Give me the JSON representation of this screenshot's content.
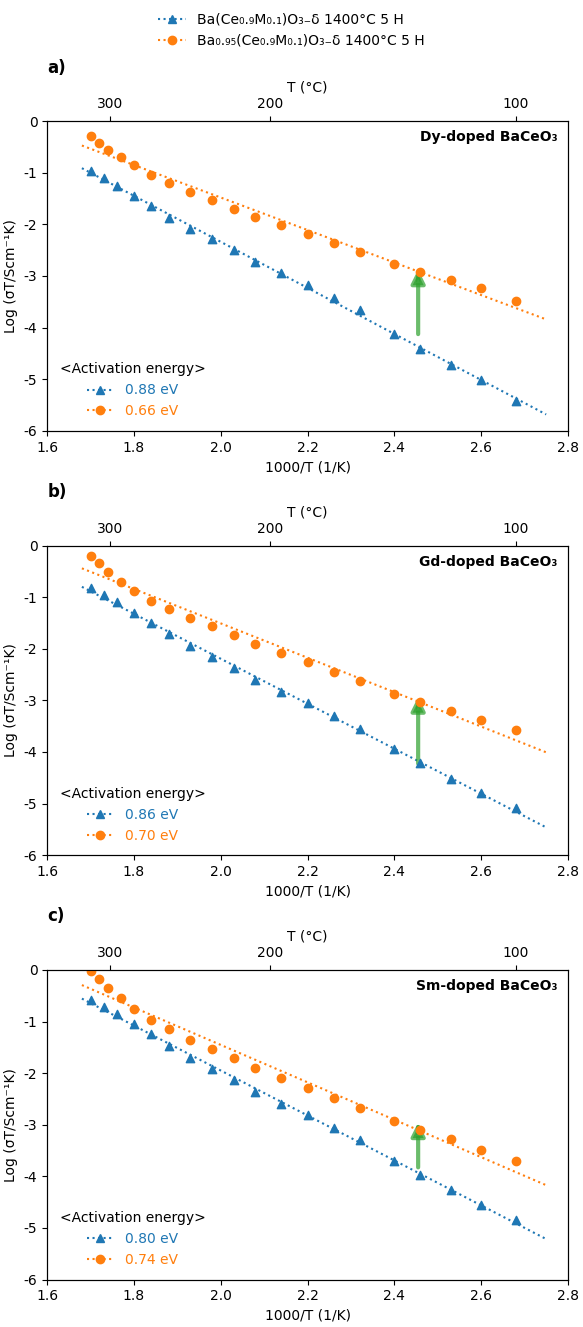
{
  "chart_data": [
    {
      "type": "scatter",
      "panel_label": "a)",
      "title": "Dy-doped BaCeO₃",
      "xlabel": "1000/T (1/K)",
      "ylabel": "Log (σT/Scm⁻¹K)",
      "x2label": "T (°C)",
      "xlim": [
        1.6,
        2.8
      ],
      "xticks": [
        1.6,
        1.8,
        2.0,
        2.2,
        2.4,
        2.6,
        2.8
      ],
      "x2lim": [
        1.6,
        2.8
      ],
      "x2ticks": [
        {
          "value": 1.744744,
          "label": "300"
        },
        {
          "value": 2.113495,
          "label": "200"
        },
        {
          "value": 2.679887,
          "label": "100"
        }
      ],
      "ylim": [
        -6,
        0
      ],
      "yticks": [
        0,
        -1,
        -2,
        -3,
        -4,
        -5,
        -6
      ],
      "annotation_title": "<Activation energy>",
      "series": [
        {
          "name": "Ba(Ce₀.₉M₀.₁)O₃₋δ 1400°C 5 H",
          "marker": "triangle",
          "line_style": "dotted",
          "annotation": "0.88 eV",
          "x": [
            1.7,
            1.731,
            1.761,
            1.8,
            1.84,
            1.88,
            1.93,
            1.98,
            2.03,
            2.08,
            2.14,
            2.2,
            2.26,
            2.32,
            2.4,
            2.46,
            2.53,
            2.6,
            2.68
          ],
          "values": [
            -0.97,
            -1.1,
            -1.25,
            -1.45,
            -1.65,
            -1.88,
            -2.08,
            -2.28,
            -2.5,
            -2.72,
            -2.95,
            -3.18,
            -3.42,
            -3.65,
            -4.12,
            -4.42,
            -4.72,
            -5.02,
            -5.42
          ],
          "trend_x": [
            1.68,
            2.75
          ],
          "trend_values": [
            -0.910968,
            -5.683002
          ]
        },
        {
          "name": "Ba₀.₉₅(Ce₀.₉M₀.₁)O₃₋δ 1400°C 5 H",
          "marker": "circle",
          "line_style": "dotted",
          "annotation": "0.66 eV",
          "x": [
            1.7,
            1.72,
            1.74,
            1.77,
            1.8,
            1.84,
            1.88,
            1.93,
            1.98,
            2.03,
            2.08,
            2.14,
            2.2,
            2.26,
            2.32,
            2.4,
            2.46,
            2.53,
            2.6,
            2.68
          ],
          "values": [
            -0.28,
            -0.42,
            -0.55,
            -0.7,
            -0.85,
            -1.05,
            -1.2,
            -1.38,
            -1.53,
            -1.7,
            -1.85,
            -2.02,
            -2.18,
            -2.36,
            -2.53,
            -2.76,
            -2.92,
            -3.08,
            -3.24,
            -3.48
          ],
          "trend_x": [
            1.68,
            2.75
          ],
          "trend_values": [
            -0.472131,
            -3.841162
          ]
        }
      ],
      "arrows": [
        {
          "x": 2.455,
          "y_tail": -4.18,
          "y_head": -2.82
        }
      ]
    },
    {
      "type": "scatter",
      "panel_label": "b)",
      "title": "Gd-doped BaCeO₃",
      "xlabel": "1000/T (1/K)",
      "ylabel": "Log (σT/Scm⁻¹K)",
      "x2label": "T (°C)",
      "xlim": [
        1.6,
        2.8
      ],
      "xticks": [
        1.6,
        1.8,
        2.0,
        2.2,
        2.4,
        2.6,
        2.8
      ],
      "x2lim": [
        1.6,
        2.8
      ],
      "x2ticks": [
        {
          "value": 1.744744,
          "label": "300"
        },
        {
          "value": 2.113495,
          "label": "200"
        },
        {
          "value": 2.679887,
          "label": "100"
        }
      ],
      "ylim": [
        -6,
        0
      ],
      "yticks": [
        0,
        -1,
        -2,
        -3,
        -4,
        -5,
        -6
      ],
      "annotation_title": "<Activation energy>",
      "series": [
        {
          "name": "Ba(Ce₀.₉M₀.₁)O₃₋δ 1400°C 5 H",
          "marker": "triangle",
          "line_style": "dotted",
          "annotation": "0.86 eV",
          "x": [
            1.7,
            1.731,
            1.761,
            1.8,
            1.84,
            1.88,
            1.93,
            1.98,
            2.03,
            2.08,
            2.14,
            2.2,
            2.26,
            2.32,
            2.4,
            2.46,
            2.53,
            2.6,
            2.68
          ],
          "values": [
            -0.82,
            -0.96,
            -1.1,
            -1.3,
            -1.5,
            -1.72,
            -1.95,
            -2.16,
            -2.38,
            -2.6,
            -2.83,
            -3.06,
            -3.3,
            -3.55,
            -3.95,
            -4.22,
            -4.52,
            -4.8,
            -5.08
          ],
          "trend_x": [
            1.68,
            2.75
          ],
          "trend_values": [
            -0.799807,
            -5.461308
          ]
        },
        {
          "name": "Ba₀.₉₅(Ce₀.₉M₀.₁)O₃₋δ 1400°C 5 H",
          "marker": "circle",
          "line_style": "dotted",
          "annotation": "0.70 eV",
          "x": [
            1.7,
            1.72,
            1.74,
            1.77,
            1.8,
            1.84,
            1.88,
            1.93,
            1.98,
            2.03,
            2.08,
            2.14,
            2.2,
            2.26,
            2.32,
            2.4,
            2.46,
            2.53,
            2.6,
            2.68
          ],
          "values": [
            -0.2,
            -0.33,
            -0.52,
            -0.7,
            -0.88,
            -1.08,
            -1.23,
            -1.4,
            -1.56,
            -1.73,
            -1.9,
            -2.08,
            -2.26,
            -2.45,
            -2.63,
            -2.88,
            -3.03,
            -3.2,
            -3.38,
            -3.58
          ],
          "trend_x": [
            1.68,
            2.75
          ],
          "trend_values": [
            -0.441774,
            -4.006483
          ]
        }
      ],
      "arrows": [
        {
          "x": 2.455,
          "y_tail": -4.28,
          "y_head": -2.88
        }
      ]
    },
    {
      "type": "scatter",
      "panel_label": "c)",
      "title": "Sm-doped BaCeO₃",
      "xlabel": "1000/T (1/K)",
      "ylabel": "Log (σT/Scm⁻¹K)",
      "x2label": "T (°C)",
      "xlim": [
        1.6,
        2.8
      ],
      "xticks": [
        1.6,
        1.8,
        2.0,
        2.2,
        2.4,
        2.6,
        2.8
      ],
      "x2lim": [
        1.6,
        2.8
      ],
      "x2ticks": [
        {
          "value": 1.744744,
          "label": "300"
        },
        {
          "value": 2.113495,
          "label": "200"
        },
        {
          "value": 2.679887,
          "label": "100"
        }
      ],
      "ylim": [
        -6,
        0
      ],
      "yticks": [
        0,
        -1,
        -2,
        -3,
        -4,
        -5,
        -6
      ],
      "annotation_title": "<Activation energy>",
      "series": [
        {
          "name": "Ba(Ce₀.₉M₀.₁)O₃₋δ 1400°C 5 H",
          "marker": "triangle",
          "line_style": "dotted",
          "annotation": "0.80 eV",
          "x": [
            1.7,
            1.731,
            1.761,
            1.8,
            1.84,
            1.88,
            1.93,
            1.98,
            2.03,
            2.08,
            2.14,
            2.2,
            2.26,
            2.32,
            2.4,
            2.46,
            2.53,
            2.6,
            2.68
          ],
          "values": [
            -0.58,
            -0.72,
            -0.86,
            -1.05,
            -1.25,
            -1.47,
            -1.7,
            -1.92,
            -2.14,
            -2.36,
            -2.59,
            -2.82,
            -3.06,
            -3.3,
            -3.7,
            -3.97,
            -4.26,
            -4.55,
            -4.85
          ],
          "trend_x": [
            1.68,
            2.75
          ],
          "trend_values": [
            -0.556371,
            -5.214722
          ]
        },
        {
          "name": "Ba₀.₉₅(Ce₀.₉M₀.₁)O₃₋δ 1400°C 5 H",
          "marker": "circle",
          "line_style": "dotted",
          "annotation": "0.74 eV",
          "x": [
            1.7,
            1.72,
            1.74,
            1.77,
            1.8,
            1.84,
            1.88,
            1.93,
            1.98,
            2.03,
            2.08,
            2.14,
            2.2,
            2.26,
            2.32,
            2.4,
            2.46,
            2.53,
            2.6,
            2.68
          ],
          "values": [
            -0.03,
            -0.18,
            -0.36,
            -0.55,
            -0.75,
            -0.97,
            -1.15,
            -1.35,
            -1.53,
            -1.71,
            -1.9,
            -2.1,
            -2.29,
            -2.49,
            -2.68,
            -2.93,
            -3.1,
            -3.28,
            -3.48,
            -3.7
          ],
          "trend_x": [
            1.68,
            2.75
          ],
          "trend_values": [
            -0.293641,
            -4.171085
          ]
        }
      ],
      "arrows": [
        {
          "x": 2.455,
          "y_tail": -3.88,
          "y_head": -2.9
        }
      ]
    }
  ]
}
